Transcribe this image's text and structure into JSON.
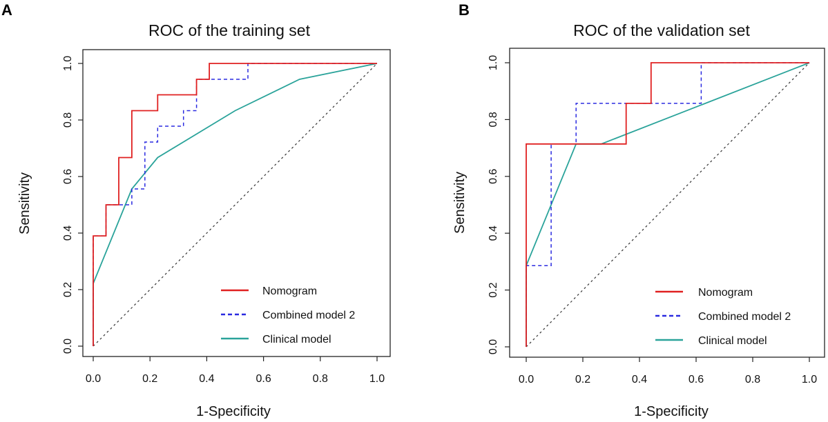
{
  "chart_data": [
    {
      "panel": "A",
      "type": "line",
      "title": "ROC of the training set",
      "xlabel": "1-Specificity",
      "ylabel": "Sensitivity",
      "xlim": [
        0,
        1
      ],
      "ylim": [
        0,
        1
      ],
      "xticks": [
        "0.0",
        "0.2",
        "0.4",
        "0.6",
        "0.8",
        "1.0"
      ],
      "yticks": [
        "0.0",
        "0.2",
        "0.4",
        "0.6",
        "0.8",
        "1.0"
      ],
      "grid": false,
      "legend_position": "bottom-right",
      "reference_line": [
        [
          0,
          0
        ],
        [
          1,
          1
        ]
      ],
      "series": [
        {
          "name": "Nomogram",
          "color": "#e02020",
          "style": "solid",
          "points": [
            [
              0,
              0
            ],
            [
              0,
              0.39
            ],
            [
              0.045,
              0.39
            ],
            [
              0.045,
              0.5
            ],
            [
              0.09,
              0.5
            ],
            [
              0.09,
              0.667
            ],
            [
              0.136,
              0.667
            ],
            [
              0.136,
              0.833
            ],
            [
              0.227,
              0.833
            ],
            [
              0.227,
              0.889
            ],
            [
              0.364,
              0.889
            ],
            [
              0.364,
              0.944
            ],
            [
              0.409,
              0.944
            ],
            [
              0.409,
              1
            ],
            [
              1,
              1
            ]
          ]
        },
        {
          "name": "Combined model 2",
          "color": "#2a2ae0",
          "style": "dashed",
          "points": [
            [
              0,
              0
            ],
            [
              0,
              0.39
            ],
            [
              0.045,
              0.39
            ],
            [
              0.045,
              0.5
            ],
            [
              0.136,
              0.5
            ],
            [
              0.136,
              0.556
            ],
            [
              0.182,
              0.556
            ],
            [
              0.182,
              0.722
            ],
            [
              0.227,
              0.722
            ],
            [
              0.227,
              0.778
            ],
            [
              0.318,
              0.778
            ],
            [
              0.318,
              0.833
            ],
            [
              0.364,
              0.833
            ],
            [
              0.364,
              0.944
            ],
            [
              0.545,
              0.944
            ],
            [
              0.545,
              1
            ],
            [
              1,
              1
            ]
          ]
        },
        {
          "name": "Clinical model",
          "color": "#2aa39a",
          "style": "solid",
          "points": [
            [
              0,
              0
            ],
            [
              0,
              0.222
            ],
            [
              0.136,
              0.556
            ],
            [
              0.227,
              0.667
            ],
            [
              0.5,
              0.833
            ],
            [
              0.727,
              0.944
            ],
            [
              1,
              1
            ]
          ]
        }
      ]
    },
    {
      "panel": "B",
      "type": "line",
      "title": "ROC of the validation set",
      "xlabel": "1-Specificity",
      "ylabel": "Sensitivity",
      "xlim": [
        0,
        1
      ],
      "ylim": [
        0,
        1
      ],
      "xticks": [
        "0.0",
        "0.2",
        "0.4",
        "0.6",
        "0.8",
        "1.0"
      ],
      "yticks": [
        "0.0",
        "0.2",
        "0.4",
        "0.6",
        "0.8",
        "1.0"
      ],
      "grid": false,
      "legend_position": "bottom-right",
      "reference_line": [
        [
          0,
          0
        ],
        [
          1,
          1
        ]
      ],
      "series": [
        {
          "name": "Nomogram",
          "color": "#e02020",
          "style": "solid",
          "points": [
            [
              0,
              0
            ],
            [
              0,
              0.286
            ],
            [
              0,
              0.714
            ],
            [
              0.353,
              0.714
            ],
            [
              0.353,
              0.857
            ],
            [
              0.441,
              0.857
            ],
            [
              0.441,
              1
            ],
            [
              1,
              1
            ]
          ]
        },
        {
          "name": "Combined model 2",
          "color": "#2a2ae0",
          "style": "dashed",
          "points": [
            [
              0,
              0
            ],
            [
              0,
              0.286
            ],
            [
              0.088,
              0.286
            ],
            [
              0.088,
              0.714
            ],
            [
              0.176,
              0.714
            ],
            [
              0.176,
              0.857
            ],
            [
              0.618,
              0.857
            ],
            [
              0.618,
              1
            ],
            [
              1,
              1
            ]
          ]
        },
        {
          "name": "Clinical model",
          "color": "#2aa39a",
          "style": "solid",
          "points": [
            [
              0,
              0
            ],
            [
              0,
              0.286
            ],
            [
              0.176,
              0.714
            ],
            [
              0.265,
              0.714
            ],
            [
              1,
              1
            ]
          ]
        }
      ]
    }
  ]
}
